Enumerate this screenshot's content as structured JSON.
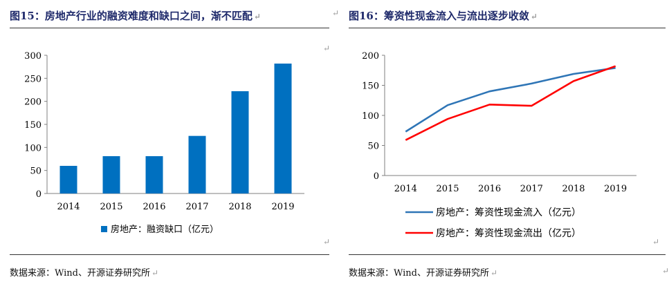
{
  "left": {
    "title": "图15：房地产行业的融资难度和缺口之间，渐不匹配",
    "source": "数据来源：Wind、开源证券研究所",
    "chart_data": {
      "type": "bar",
      "categories": [
        "2014",
        "2015",
        "2016",
        "2017",
        "2018",
        "2019"
      ],
      "series": [
        {
          "name": "房地产：融资缺口（亿元）",
          "values": [
            60,
            81,
            81,
            125,
            222,
            282
          ],
          "color": "#0070c0"
        }
      ],
      "ylim": [
        0,
        300
      ],
      "yticks": [
        0,
        50,
        100,
        150,
        200,
        250,
        300
      ],
      "xlabel": "",
      "ylabel": "",
      "grid": false,
      "legend": "bottom"
    }
  },
  "right": {
    "title": "图16：筹资性现金流入与流出逐步收敛",
    "source": "数据来源：Wind、开源证券研究所",
    "chart_data": {
      "type": "line",
      "categories": [
        "2014",
        "2015",
        "2016",
        "2017",
        "2018",
        "2019"
      ],
      "series": [
        {
          "name": "房地产：筹资性现金流入（亿元）",
          "values": [
            73,
            117,
            140,
            153,
            169,
            179
          ],
          "color": "#2e75b6"
        },
        {
          "name": "房地产：筹资性现金流出（亿元）",
          "values": [
            59,
            94,
            118,
            116,
            157,
            182
          ],
          "color": "#ff0000"
        }
      ],
      "ylim": [
        0,
        200
      ],
      "yticks": [
        0,
        50,
        100,
        150,
        200
      ],
      "xlabel": "",
      "ylabel": "",
      "grid": false,
      "legend": "bottom"
    }
  }
}
